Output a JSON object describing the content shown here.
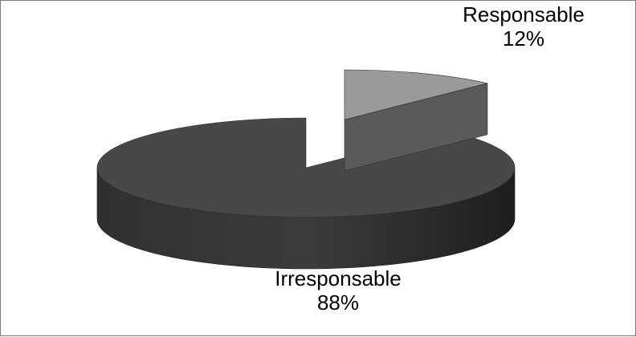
{
  "chart_data": {
    "type": "pie",
    "title": "",
    "style": "3d-exploded",
    "slices": [
      {
        "label": "Responsable",
        "value": 12,
        "value_label": "12%",
        "color": "#9a9a9a"
      },
      {
        "label": "Irresponsable",
        "value": 88,
        "value_label": "88%",
        "color": "#484848"
      }
    ]
  }
}
